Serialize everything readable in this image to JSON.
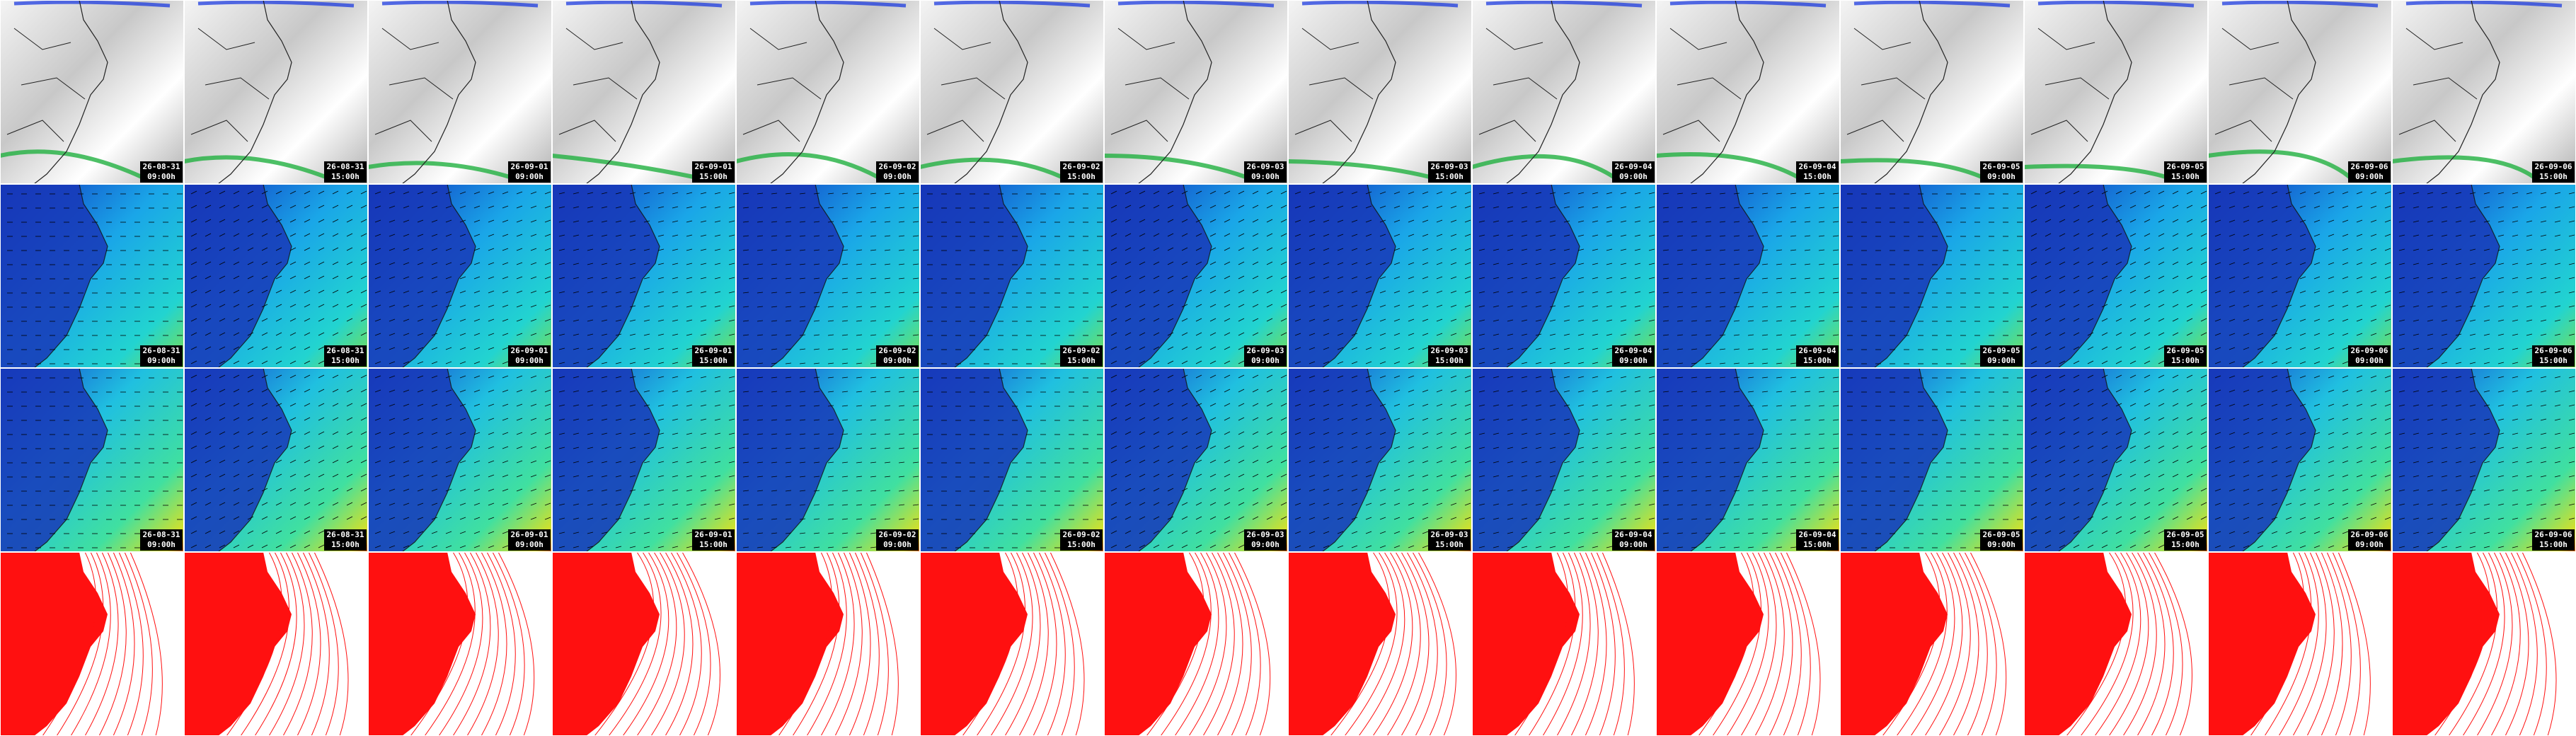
{
  "rows": [
    {
      "tiles": [
        {
          "date": "26-08-31",
          "time": "09:00h"
        },
        {
          "date": "26-08-31",
          "time": "15:00h"
        },
        {
          "date": "26-09-01",
          "time": "09:00h"
        },
        {
          "date": "26-09-01",
          "time": "15:00h"
        },
        {
          "date": "26-09-02",
          "time": "09:00h"
        },
        {
          "date": "26-09-02",
          "time": "15:00h"
        },
        {
          "date": "26-09-03",
          "time": "09:00h"
        },
        {
          "date": "26-09-03",
          "time": "15:00h"
        },
        {
          "date": "26-09-04",
          "time": "09:00h"
        },
        {
          "date": "26-09-04",
          "time": "15:00h"
        },
        {
          "date": "26-09-05",
          "time": "09:00h"
        },
        {
          "date": "26-09-05",
          "time": "15:00h"
        },
        {
          "date": "26-09-06",
          "time": "09:00h"
        },
        {
          "date": "26-09-06",
          "time": "15:00h"
        }
      ]
    },
    {
      "tiles": [
        {
          "date": "26-08-31",
          "time": "09:00h"
        },
        {
          "date": "26-08-31",
          "time": "15:00h"
        },
        {
          "date": "26-09-01",
          "time": "09:00h"
        },
        {
          "date": "26-09-01",
          "time": "15:00h"
        },
        {
          "date": "26-09-02",
          "time": "09:00h"
        },
        {
          "date": "26-09-02",
          "time": "15:00h"
        },
        {
          "date": "26-09-03",
          "time": "09:00h"
        },
        {
          "date": "26-09-03",
          "time": "15:00h"
        },
        {
          "date": "26-09-04",
          "time": "09:00h"
        },
        {
          "date": "26-09-04",
          "time": "15:00h"
        },
        {
          "date": "26-09-05",
          "time": "09:00h"
        },
        {
          "date": "26-09-05",
          "time": "15:00h"
        },
        {
          "date": "26-09-06",
          "time": "09:00h"
        },
        {
          "date": "26-09-06",
          "time": "15:00h"
        }
      ]
    },
    {
      "tiles": [
        {
          "date": "26-08-31",
          "time": "09:00h"
        },
        {
          "date": "26-08-31",
          "time": "15:00h"
        },
        {
          "date": "26-09-01",
          "time": "09:00h"
        },
        {
          "date": "26-09-01",
          "time": "15:00h"
        },
        {
          "date": "26-09-02",
          "time": "09:00h"
        },
        {
          "date": "26-09-02",
          "time": "15:00h"
        },
        {
          "date": "26-09-03",
          "time": "09:00h"
        },
        {
          "date": "26-09-03",
          "time": "15:00h"
        },
        {
          "date": "26-09-04",
          "time": "09:00h"
        },
        {
          "date": "26-09-04",
          "time": "15:00h"
        },
        {
          "date": "26-09-05",
          "time": "09:00h"
        },
        {
          "date": "26-09-05",
          "time": "15:00h"
        },
        {
          "date": "26-09-06",
          "time": "09:00h"
        },
        {
          "date": "26-09-06",
          "time": "15:00h"
        }
      ]
    }
  ]
}
